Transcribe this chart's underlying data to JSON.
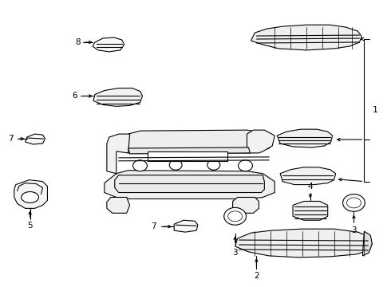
{
  "background_color": "#ffffff",
  "line_color": "#000000",
  "figure_width": 4.9,
  "figure_height": 3.6,
  "dpi": 100
}
